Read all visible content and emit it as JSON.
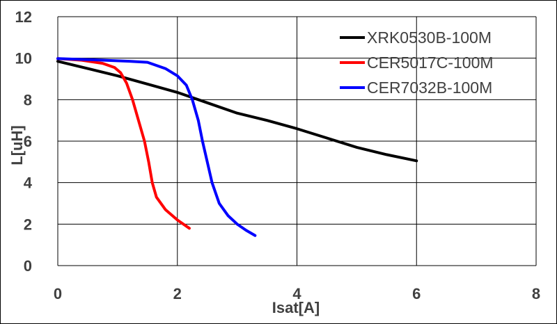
{
  "chart_data": {
    "type": "line",
    "title": "",
    "xlabel": "Isat[A]",
    "ylabel": "L[uH]",
    "xlim": [
      0,
      8
    ],
    "ylim": [
      0,
      12
    ],
    "x_ticks": [
      "0",
      "2",
      "4",
      "6",
      "8"
    ],
    "y_ticks": [
      "0",
      "2",
      "4",
      "6",
      "8",
      "10",
      "12"
    ],
    "grid": true,
    "legend_position": "top-right",
    "series": [
      {
        "name": "XRK0530B-100M",
        "color": "#000000",
        "points": [
          [
            0,
            9.85
          ],
          [
            0.5,
            9.5
          ],
          [
            1.0,
            9.15
          ],
          [
            1.5,
            8.75
          ],
          [
            2.0,
            8.35
          ],
          [
            2.5,
            7.85
          ],
          [
            3.0,
            7.35
          ],
          [
            3.5,
            7.0
          ],
          [
            4.0,
            6.6
          ],
          [
            4.5,
            6.15
          ],
          [
            5.0,
            5.7
          ],
          [
            5.5,
            5.35
          ],
          [
            6.0,
            5.05
          ]
        ]
      },
      {
        "name": "CER5017C-100M",
        "color": "#ff0000",
        "points": [
          [
            0,
            9.98
          ],
          [
            0.4,
            9.9
          ],
          [
            0.75,
            9.75
          ],
          [
            0.95,
            9.55
          ],
          [
            1.05,
            9.3
          ],
          [
            1.15,
            8.8
          ],
          [
            1.25,
            8.0
          ],
          [
            1.35,
            7.0
          ],
          [
            1.45,
            6.0
          ],
          [
            1.52,
            5.0
          ],
          [
            1.58,
            4.0
          ],
          [
            1.65,
            3.3
          ],
          [
            1.8,
            2.7
          ],
          [
            2.0,
            2.2
          ],
          [
            2.2,
            1.8
          ]
        ]
      },
      {
        "name": "CER7032B-100M",
        "color": "#0000ff",
        "points": [
          [
            0,
            9.98
          ],
          [
            0.6,
            9.92
          ],
          [
            1.2,
            9.85
          ],
          [
            1.5,
            9.8
          ],
          [
            1.8,
            9.5
          ],
          [
            2.0,
            9.15
          ],
          [
            2.15,
            8.7
          ],
          [
            2.25,
            8.0
          ],
          [
            2.35,
            7.0
          ],
          [
            2.42,
            6.0
          ],
          [
            2.5,
            5.0
          ],
          [
            2.58,
            4.0
          ],
          [
            2.7,
            3.0
          ],
          [
            2.85,
            2.4
          ],
          [
            3.0,
            2.0
          ],
          [
            3.15,
            1.7
          ],
          [
            3.3,
            1.45
          ]
        ]
      }
    ]
  }
}
